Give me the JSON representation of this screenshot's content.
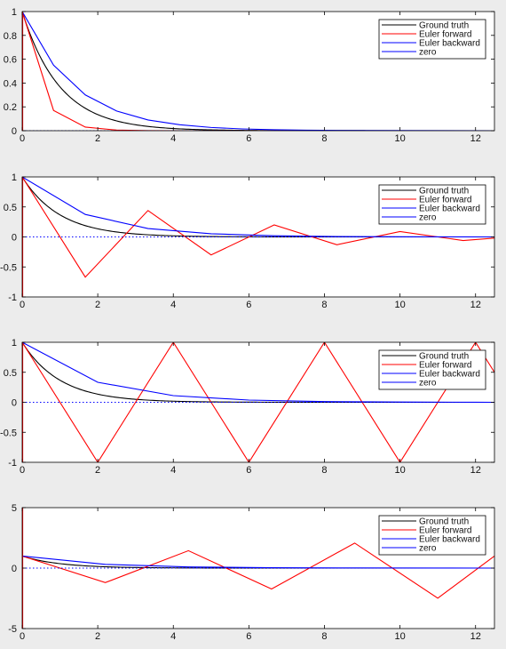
{
  "colors": {
    "ground_truth": "#000000",
    "euler_forward": "#ff0000",
    "euler_backward": "#0000ff",
    "zero": "#0000ff",
    "axes_bg": "#ffffff",
    "figure_bg": "#ececec"
  },
  "legend_labels": [
    "Ground truth",
    "Euler forward",
    "Euler backward",
    "zero"
  ],
  "chart_data": [
    {
      "type": "line",
      "xlim": [
        0,
        12.5
      ],
      "ylim": [
        0,
        1
      ],
      "xticks": [
        0,
        2,
        4,
        6,
        8,
        10,
        12
      ],
      "yticks": [
        0,
        0.2,
        0.4,
        0.6,
        0.8,
        1
      ],
      "ytick_labels": [
        "0",
        "0.2",
        "0.4",
        "0.6",
        "0.8",
        "1"
      ],
      "legend_position": "top-right",
      "series": [
        {
          "name": "Ground truth",
          "color": "#000000",
          "style": "solid",
          "function": "exp(-x)"
        },
        {
          "name": "Euler forward",
          "color": "#ff0000",
          "style": "solid",
          "x": [
            0,
            0.83,
            1.67,
            2.5,
            3.33,
            4.17,
            5,
            12.5
          ],
          "y": [
            1,
            0.17,
            0.03,
            0.005,
            0.001,
            0,
            0,
            0
          ]
        },
        {
          "name": "Euler backward",
          "color": "#0000ff",
          "style": "solid",
          "x": [
            0,
            0.83,
            1.67,
            2.5,
            3.33,
            4.17,
            5,
            5.83,
            6.67,
            7.5,
            8.33,
            12.5
          ],
          "y": [
            1,
            0.55,
            0.3,
            0.165,
            0.09,
            0.05,
            0.027,
            0.015,
            0.008,
            0.004,
            0.002,
            0
          ]
        },
        {
          "name": "zero",
          "color": "#0000ff",
          "style": "dotted",
          "x": [
            0,
            12.5
          ],
          "y": [
            0,
            0
          ]
        }
      ]
    },
    {
      "type": "line",
      "xlim": [
        0,
        12.5
      ],
      "ylim": [
        -1,
        1
      ],
      "xticks": [
        0,
        2,
        4,
        6,
        8,
        10,
        12
      ],
      "yticks": [
        -1,
        -0.5,
        0,
        0.5,
        1
      ],
      "ytick_labels": [
        "-1",
        "-0.5",
        "0",
        "0.5",
        "1"
      ],
      "legend_position": "top-right",
      "series": [
        {
          "name": "Ground truth",
          "color": "#000000",
          "style": "solid",
          "function": "exp(-x)"
        },
        {
          "name": "Euler forward",
          "color": "#ff0000",
          "style": "solid",
          "x": [
            0,
            1.67,
            3.33,
            5,
            6.67,
            8.33,
            10,
            11.67,
            12.5
          ],
          "y": [
            1,
            -0.67,
            0.44,
            -0.3,
            0.2,
            -0.13,
            0.09,
            -0.06,
            -0.02
          ]
        },
        {
          "name": "Euler backward",
          "color": "#0000ff",
          "style": "solid",
          "x": [
            0,
            1.67,
            3.33,
            5,
            6.67,
            8.33,
            10,
            11.67,
            12.5
          ],
          "y": [
            1,
            0.375,
            0.14,
            0.053,
            0.02,
            0.007,
            0.003,
            0.001,
            0
          ]
        },
        {
          "name": "zero",
          "color": "#0000ff",
          "style": "dotted",
          "x": [
            0,
            12.5
          ],
          "y": [
            0,
            0
          ]
        }
      ]
    },
    {
      "type": "line",
      "xlim": [
        0,
        12.5
      ],
      "ylim": [
        -1,
        1
      ],
      "xticks": [
        0,
        2,
        4,
        6,
        8,
        10,
        12
      ],
      "yticks": [
        -1,
        -0.5,
        0,
        0.5,
        1
      ],
      "ytick_labels": [
        "-1",
        "-0.5",
        "0",
        "0.5",
        "1"
      ],
      "legend_position": "top-right",
      "series": [
        {
          "name": "Ground truth",
          "color": "#000000",
          "style": "solid",
          "function": "exp(-x)"
        },
        {
          "name": "Euler forward",
          "color": "#ff0000",
          "style": "solid",
          "x": [
            0,
            2,
            4,
            6,
            8,
            10,
            12,
            12.5
          ],
          "y": [
            1,
            -1,
            1,
            -1,
            1,
            -1,
            1,
            0.5
          ]
        },
        {
          "name": "Euler backward",
          "color": "#0000ff",
          "style": "solid",
          "x": [
            0,
            2,
            4,
            6,
            8,
            10,
            12,
            12.5
          ],
          "y": [
            1,
            0.333,
            0.111,
            0.037,
            0.012,
            0.004,
            0.001,
            0
          ]
        },
        {
          "name": "zero",
          "color": "#0000ff",
          "style": "dotted",
          "x": [
            0,
            12.5
          ],
          "y": [
            0,
            0
          ]
        }
      ]
    },
    {
      "type": "line",
      "xlim": [
        0,
        12.5
      ],
      "ylim": [
        -5,
        5
      ],
      "xticks": [
        0,
        2,
        4,
        6,
        8,
        10,
        12
      ],
      "yticks": [
        -5,
        0,
        5
      ],
      "ytick_labels": [
        "-5",
        "0",
        "5"
      ],
      "legend_position": "top-right",
      "series": [
        {
          "name": "Ground truth",
          "color": "#000000",
          "style": "solid",
          "function": "exp(-x)"
        },
        {
          "name": "Euler forward",
          "color": "#ff0000",
          "style": "solid",
          "x": [
            0,
            2.2,
            4.4,
            6.6,
            8.8,
            11,
            12.5
          ],
          "y": [
            1,
            -1.2,
            1.44,
            -1.73,
            2.07,
            -2.49,
            1
          ]
        },
        {
          "name": "Euler backward",
          "color": "#0000ff",
          "style": "solid",
          "x": [
            0,
            2.2,
            4.4,
            6.6,
            8.8,
            11,
            12.5
          ],
          "y": [
            1,
            0.31,
            0.1,
            0.03,
            0.01,
            0.003,
            0
          ]
        },
        {
          "name": "zero",
          "color": "#0000ff",
          "style": "dotted",
          "x": [
            0,
            12.5
          ],
          "y": [
            0,
            0
          ]
        }
      ]
    }
  ]
}
